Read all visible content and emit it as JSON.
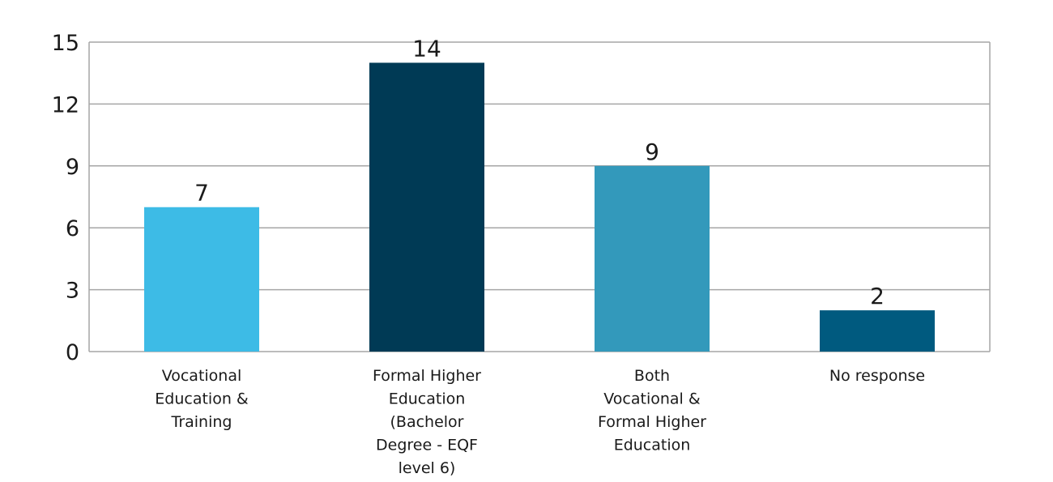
{
  "chart_data": {
    "type": "bar",
    "categories": [
      [
        "Vocational",
        "Education &",
        "Training"
      ],
      [
        "Formal Higher",
        "Education",
        "(Bachelor",
        "Degree - EQF",
        "level 6)"
      ],
      [
        "Both",
        "Vocational &",
        "Formal Higher",
        "Education"
      ],
      [
        "No response"
      ]
    ],
    "values": [
      7,
      14,
      9,
      2
    ],
    "data_labels": [
      "7",
      "14",
      "9",
      "2"
    ],
    "bar_colors": [
      "#3dbbe6",
      "#003a55",
      "#3399bb",
      "#005a7f"
    ],
    "ylim": [
      0,
      15
    ],
    "yticks": [
      0,
      3,
      6,
      9,
      12,
      15
    ],
    "ytick_labels": [
      "0",
      "3",
      "6",
      "9",
      "12",
      "15"
    ],
    "title": "",
    "xlabel": "",
    "ylabel": "",
    "grid": "horizontal",
    "legend": "none",
    "gridline_color": "#a6a6a6"
  }
}
